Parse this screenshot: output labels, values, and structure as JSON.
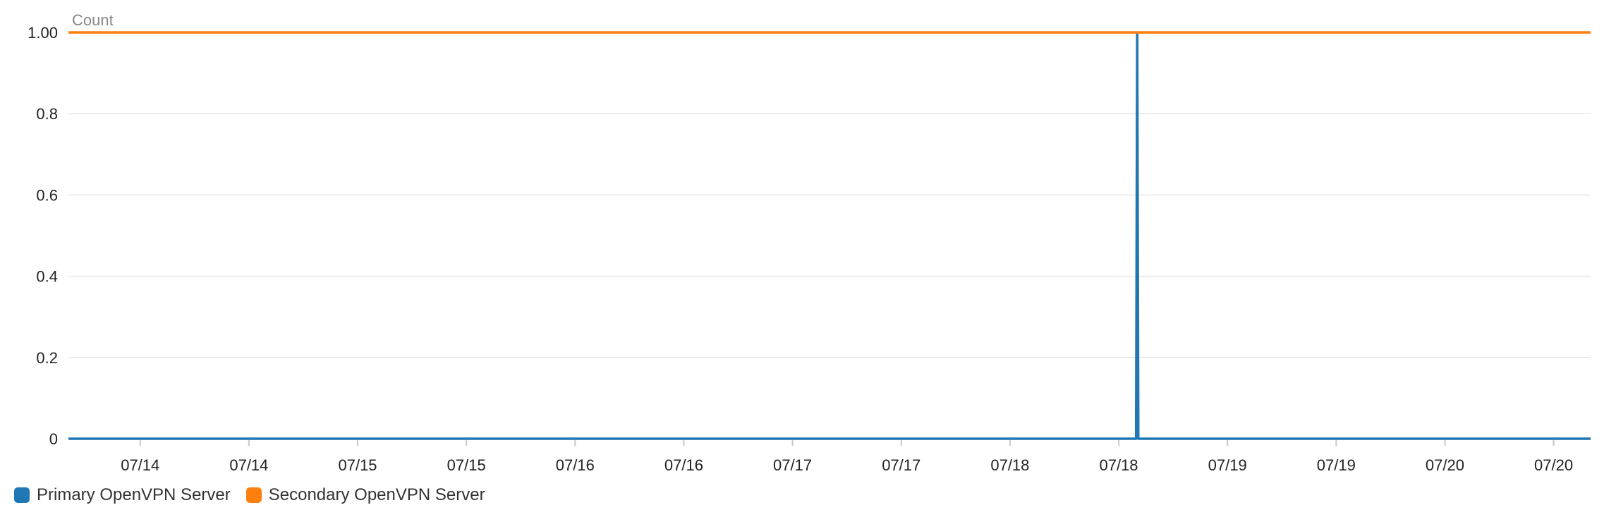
{
  "chart_data": {
    "type": "line",
    "ylabel": "Count",
    "ylim": [
      0,
      1
    ],
    "y_ticks": [
      "1.00",
      "0.8",
      "0.6",
      "0.4",
      "0.2",
      "0"
    ],
    "y_tick_values": [
      1.0,
      0.8,
      0.6,
      0.4,
      0.2,
      0
    ],
    "x_tick_labels": [
      "07/14",
      "07/14",
      "07/15",
      "07/15",
      "07/16",
      "07/16",
      "07/17",
      "07/17",
      "07/18",
      "07/18",
      "07/19",
      "07/19",
      "07/20",
      "07/20"
    ],
    "x_ticks": [
      0.5,
      1.0,
      1.5,
      2.0,
      2.5,
      3.0,
      3.5,
      4.0,
      4.5,
      5.0,
      5.5,
      6.0,
      6.5,
      7.0
    ],
    "xlim": [
      0.17,
      7.17
    ],
    "grid": true,
    "legend_position": "bottom-left",
    "series": [
      {
        "name": "Primary OpenVPN Server",
        "color": "#1f77b4",
        "x": [
          0.17,
          5.08,
          5.085,
          5.09,
          7.17
        ],
        "y": [
          0,
          0,
          1,
          0,
          0
        ]
      },
      {
        "name": "Secondary OpenVPN Server",
        "color": "#ff7f0e",
        "x": [
          0.17,
          7.17
        ],
        "y": [
          1,
          1
        ]
      }
    ]
  }
}
